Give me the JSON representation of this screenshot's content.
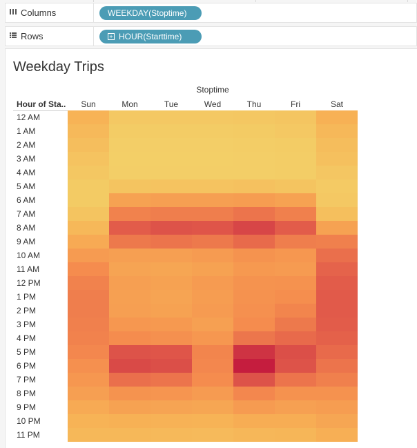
{
  "shelves": {
    "columns": {
      "label": "Columns",
      "icon": "columns-icon",
      "pill": "WEEKDAY(Stoptime)"
    },
    "rows": {
      "label": "Rows",
      "icon": "rows-icon",
      "pill": "HOUR(Starttime)"
    }
  },
  "colors": {
    "pill": "#4b9cb5",
    "low": "#f2d46a",
    "high": "#c0123c"
  },
  "chart_data": {
    "type": "heatmap",
    "title": "Weekday Trips",
    "x_group_label": "Stoptime",
    "row_header": "Hour of Sta..",
    "x": [
      "Sun",
      "Mon",
      "Tue",
      "Wed",
      "Thu",
      "Fri",
      "Sat"
    ],
    "y": [
      "12 AM",
      "1 AM",
      "2 AM",
      "3 AM",
      "4 AM",
      "5 AM",
      "6 AM",
      "7 AM",
      "8 AM",
      "9 AM",
      "10 AM",
      "11 AM",
      "12 PM",
      "1 PM",
      "2 PM",
      "3 PM",
      "4 PM",
      "5 PM",
      "6 PM",
      "7 PM",
      "8 PM",
      "9 PM",
      "10 PM",
      "11 PM"
    ],
    "intensity_range": [
      0,
      1
    ],
    "values": [
      [
        0.28,
        0.1,
        0.1,
        0.1,
        0.11,
        0.13,
        0.3
      ],
      [
        0.23,
        0.07,
        0.07,
        0.07,
        0.08,
        0.1,
        0.24
      ],
      [
        0.19,
        0.05,
        0.05,
        0.05,
        0.06,
        0.07,
        0.2
      ],
      [
        0.15,
        0.04,
        0.04,
        0.04,
        0.05,
        0.06,
        0.17
      ],
      [
        0.11,
        0.05,
        0.05,
        0.05,
        0.05,
        0.06,
        0.12
      ],
      [
        0.08,
        0.14,
        0.15,
        0.15,
        0.16,
        0.14,
        0.09
      ],
      [
        0.08,
        0.38,
        0.4,
        0.4,
        0.41,
        0.38,
        0.1
      ],
      [
        0.14,
        0.54,
        0.56,
        0.56,
        0.6,
        0.55,
        0.18
      ],
      [
        0.24,
        0.7,
        0.74,
        0.73,
        0.8,
        0.7,
        0.38
      ],
      [
        0.34,
        0.58,
        0.6,
        0.58,
        0.64,
        0.56,
        0.55
      ],
      [
        0.42,
        0.4,
        0.4,
        0.42,
        0.46,
        0.44,
        0.62
      ],
      [
        0.5,
        0.37,
        0.36,
        0.38,
        0.43,
        0.42,
        0.67
      ],
      [
        0.54,
        0.4,
        0.38,
        0.42,
        0.46,
        0.47,
        0.7
      ],
      [
        0.56,
        0.39,
        0.37,
        0.41,
        0.47,
        0.49,
        0.71
      ],
      [
        0.56,
        0.4,
        0.38,
        0.42,
        0.48,
        0.53,
        0.71
      ],
      [
        0.55,
        0.44,
        0.43,
        0.39,
        0.5,
        0.58,
        0.7
      ],
      [
        0.54,
        0.5,
        0.48,
        0.44,
        0.59,
        0.64,
        0.68
      ],
      [
        0.52,
        0.74,
        0.73,
        0.53,
        0.88,
        0.76,
        0.64
      ],
      [
        0.48,
        0.78,
        0.76,
        0.52,
        0.96,
        0.74,
        0.6
      ],
      [
        0.44,
        0.62,
        0.6,
        0.5,
        0.74,
        0.6,
        0.55
      ],
      [
        0.4,
        0.46,
        0.45,
        0.42,
        0.52,
        0.47,
        0.47
      ],
      [
        0.34,
        0.38,
        0.37,
        0.36,
        0.42,
        0.39,
        0.41
      ],
      [
        0.28,
        0.3,
        0.29,
        0.28,
        0.32,
        0.32,
        0.36
      ],
      [
        0.24,
        0.24,
        0.23,
        0.22,
        0.25,
        0.26,
        0.31
      ]
    ]
  }
}
